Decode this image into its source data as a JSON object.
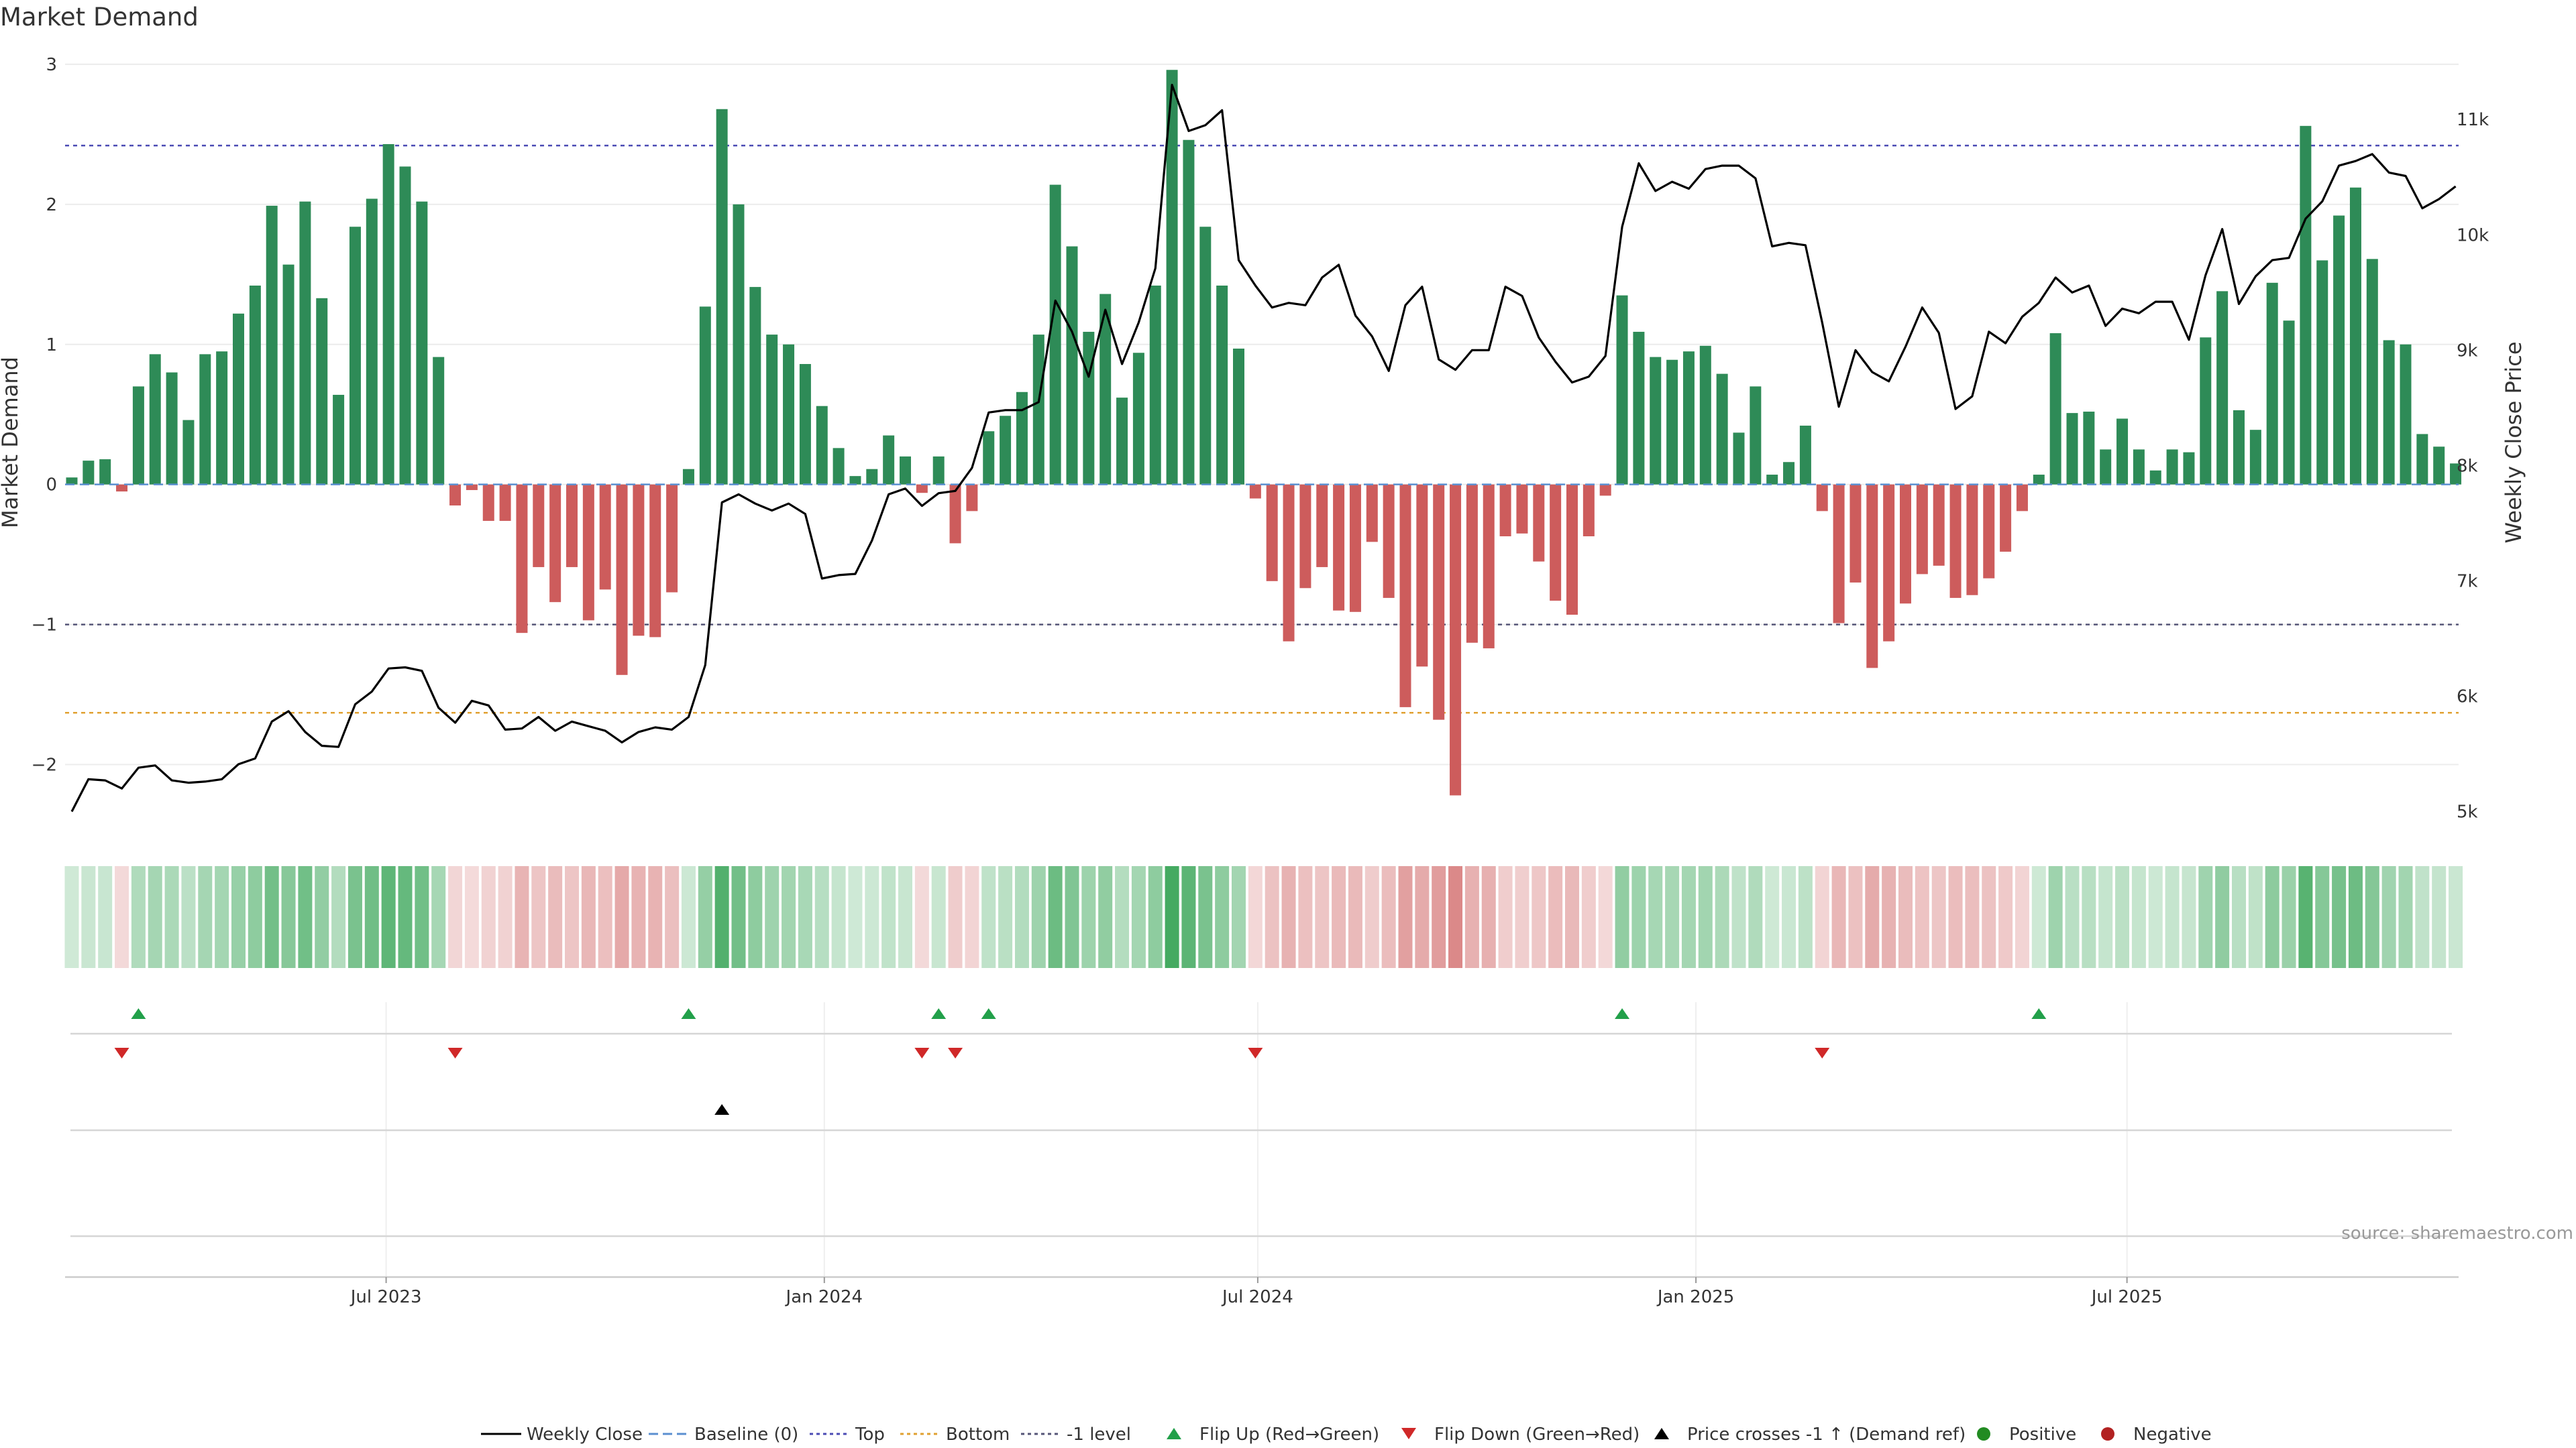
{
  "chart_data": {
    "type": "bar",
    "title": "Market Demand",
    "ylabel": "Market Demand",
    "y2label": "Weekly Close Price",
    "ylim": [
      -2.5,
      3.1
    ],
    "y2lim": [
      4800,
      11600
    ],
    "yticks": [
      "3",
      "2",
      "1",
      "0",
      "−1",
      "−2"
    ],
    "y2ticks": [
      "11k",
      "10k",
      "9k",
      "8k",
      "7k",
      "6k",
      "5k"
    ],
    "xticks": [
      "Jul 2023",
      "Jan 2024",
      "Jul 2024",
      "Jan 2025",
      "Jul 2025"
    ],
    "x": {
      "start": "2023-02-19",
      "step_days": 7,
      "count": 144
    },
    "reference_lines": {
      "top": 2.42,
      "bottom": -1.63,
      "minus_one": -1
    },
    "colors": {
      "positive": "#2e8b57",
      "negative": "#cd5c5c",
      "price": "#000000",
      "top": "#4b4bb4",
      "bottom": "#e0a030",
      "minus_one": "#555577"
    },
    "series": [
      {
        "name": "Market Demand",
        "values": [
          0.05,
          0.17,
          0.18,
          -0.05,
          0.7,
          0.93,
          0.8,
          0.46,
          0.93,
          0.95,
          1.22,
          1.42,
          1.99,
          1.57,
          2.02,
          1.33,
          0.64,
          1.84,
          2.04,
          2.43,
          2.27,
          2.02,
          0.91,
          -0.15,
          -0.04,
          -0.26,
          -0.26,
          -1.06,
          -0.59,
          -0.84,
          -0.59,
          -0.97,
          -0.75,
          -1.36,
          -1.08,
          -1.09,
          -0.77,
          0.11,
          1.27,
          2.68,
          2.0,
          1.41,
          1.07,
          1.0,
          0.86,
          0.56,
          0.26,
          0.06,
          0.11,
          0.35,
          0.2,
          -0.06,
          0.2,
          -0.42,
          -0.19,
          0.38,
          0.49,
          0.66,
          1.07,
          2.14,
          1.7,
          1.09,
          1.36,
          0.62,
          0.94,
          1.42,
          2.96,
          2.46,
          1.84,
          1.42,
          0.97,
          -0.1,
          -0.69,
          -1.12,
          -0.74,
          -0.59,
          -0.9,
          -0.91,
          -0.41,
          -0.81,
          -1.59,
          -1.3,
          -1.68,
          -2.22,
          -1.13,
          -1.17,
          -0.37,
          -0.35,
          -0.55,
          -0.83,
          -0.93,
          -0.37,
          -0.08,
          1.35,
          1.09,
          0.91,
          0.89,
          0.95,
          0.99,
          0.79,
          0.37,
          0.7,
          0.07,
          0.16,
          0.42,
          -0.19,
          -0.99,
          -0.7,
          -1.31,
          -1.12,
          -0.85,
          -0.64,
          -0.58,
          -0.81,
          -0.79,
          -0.67,
          -0.48,
          -0.19,
          0.07,
          1.08,
          0.51,
          0.52,
          0.25,
          0.47,
          0.25,
          0.1,
          0.25,
          0.23,
          1.05,
          1.38,
          0.53,
          0.39,
          1.44,
          1.17,
          2.56,
          1.6,
          1.92,
          2.12,
          1.61,
          1.03,
          1.0,
          0.36,
          0.27,
          0.15
        ]
      },
      {
        "name": "Weekly Close",
        "values": [
          5000,
          5280,
          5270,
          5200,
          5380,
          5400,
          5270,
          5250,
          5260,
          5280,
          5410,
          5460,
          5780,
          5870,
          5690,
          5570,
          5560,
          5930,
          6040,
          6240,
          6250,
          6220,
          5900,
          5770,
          5960,
          5920,
          5710,
          5720,
          5820,
          5700,
          5780,
          5740,
          5700,
          5600,
          5690,
          5730,
          5710,
          5820,
          6270,
          7680,
          7750,
          7670,
          7610,
          7670,
          7580,
          7020,
          7050,
          7060,
          7350,
          7750,
          7800,
          7650,
          7760,
          7780,
          7980,
          8460,
          8480,
          8480,
          8550,
          9430,
          9160,
          8770,
          9350,
          8880,
          9240,
          9710,
          11300,
          10900,
          10950,
          11080,
          9780,
          9560,
          9370,
          9410,
          9390,
          9630,
          9740,
          9300,
          9120,
          8820,
          9390,
          9550,
          8920,
          8830,
          9000,
          9000,
          9550,
          9470,
          9110,
          8900,
          8720,
          8770,
          8950,
          10070,
          10620,
          10380,
          10460,
          10400,
          10570,
          10600,
          10600,
          10490,
          9900,
          9930,
          9910,
          9240,
          8510,
          9000,
          8810,
          8730,
          9030,
          9370,
          9150,
          8490,
          8600,
          9160,
          9060,
          9290,
          9410,
          9630,
          9500,
          9560,
          9210,
          9360,
          9320,
          9420,
          9420,
          9090,
          9650,
          10050,
          9400,
          9640,
          9780,
          9800,
          10140,
          10290,
          10600,
          10640,
          10700,
          10540,
          10510,
          10230,
          10310,
          10420
        ]
      }
    ],
    "flips_up": [
      4,
      37,
      52,
      55,
      93,
      118
    ],
    "flips_down": [
      3,
      23,
      51,
      53,
      71,
      105
    ],
    "price_cross_up": [
      39
    ],
    "legend": [
      "Weekly Close",
      "Baseline (0)",
      "Top",
      "Bottom",
      "-1 level",
      "Flip Up (Red→Green)",
      "Flip Down (Green→Red)",
      "Price crosses -1 ↑ (Demand ref)",
      "Positive",
      "Negative"
    ],
    "legend_placement": "bottom-center",
    "source": "source: sharemaestro.com"
  }
}
